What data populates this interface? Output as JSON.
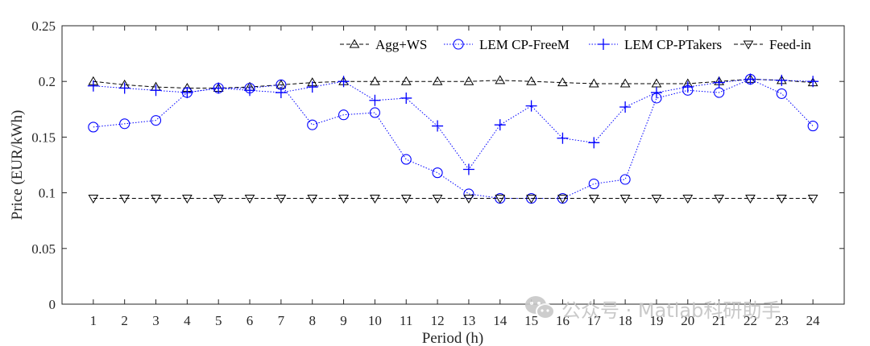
{
  "chart_data": {
    "type": "line",
    "title": "",
    "xlabel": "Period (h)",
    "ylabel": "Price (EUR/kWh)",
    "categories": [
      1,
      2,
      3,
      4,
      5,
      6,
      7,
      8,
      9,
      10,
      11,
      12,
      13,
      14,
      15,
      16,
      17,
      18,
      19,
      20,
      21,
      22,
      23,
      24
    ],
    "x_tick_labels": [
      "1",
      "2",
      "3",
      "4",
      "5",
      "6",
      "7",
      "8",
      "9",
      "10",
      "11",
      "12",
      "13",
      "14",
      "15",
      "16",
      "17",
      "18",
      "19",
      "20",
      "21",
      "22",
      "23",
      "24"
    ],
    "xlim": [
      0,
      25
    ],
    "ylim": [
      0,
      0.25
    ],
    "y_ticks": [
      0,
      0.05,
      0.1,
      0.15,
      0.2,
      0.25
    ],
    "y_tick_labels": [
      "0",
      "0.05",
      "0.1",
      "0.15",
      "0.2",
      "0.25"
    ],
    "grid": false,
    "legend_position": "top-right",
    "series": [
      {
        "name": "Agg+WS",
        "marker": "triangle-up",
        "line_style": "dashed",
        "color": "#000000",
        "values": [
          0.2,
          0.197,
          0.195,
          0.194,
          0.194,
          0.195,
          0.197,
          0.199,
          0.2,
          0.2,
          0.2,
          0.2,
          0.2,
          0.201,
          0.2,
          0.199,
          0.198,
          0.198,
          0.198,
          0.198,
          0.2,
          0.202,
          0.201,
          0.199
        ]
      },
      {
        "name": "LEM CP-FreeM",
        "marker": "circle",
        "line_style": "dotted",
        "color": "#0000ff",
        "values": [
          0.159,
          0.162,
          0.165,
          0.19,
          0.194,
          0.194,
          0.197,
          0.161,
          0.17,
          0.172,
          0.13,
          0.118,
          0.099,
          0.095,
          0.095,
          0.095,
          0.108,
          0.112,
          0.185,
          0.192,
          0.19,
          0.202,
          0.189,
          0.16
        ]
      },
      {
        "name": "LEM CP-PTakers",
        "marker": "plus",
        "line_style": "dotted",
        "color": "#0000ff",
        "values": [
          0.196,
          0.194,
          0.192,
          0.19,
          0.194,
          0.192,
          0.19,
          0.195,
          0.2,
          0.183,
          0.185,
          0.16,
          0.121,
          0.161,
          0.178,
          0.149,
          0.145,
          0.177,
          0.19,
          0.195,
          0.199,
          0.202,
          0.201,
          0.2
        ]
      },
      {
        "name": "Feed-in",
        "marker": "triangle-down",
        "line_style": "dashed",
        "color": "#000000",
        "values": [
          0.095,
          0.095,
          0.095,
          0.095,
          0.095,
          0.095,
          0.095,
          0.095,
          0.095,
          0.095,
          0.095,
          0.095,
          0.095,
          0.095,
          0.095,
          0.095,
          0.095,
          0.095,
          0.095,
          0.095,
          0.095,
          0.095,
          0.095,
          0.095
        ]
      }
    ]
  },
  "watermark": {
    "text": "公众号 · Matlab科研助手",
    "icon": "wechat-icon"
  }
}
